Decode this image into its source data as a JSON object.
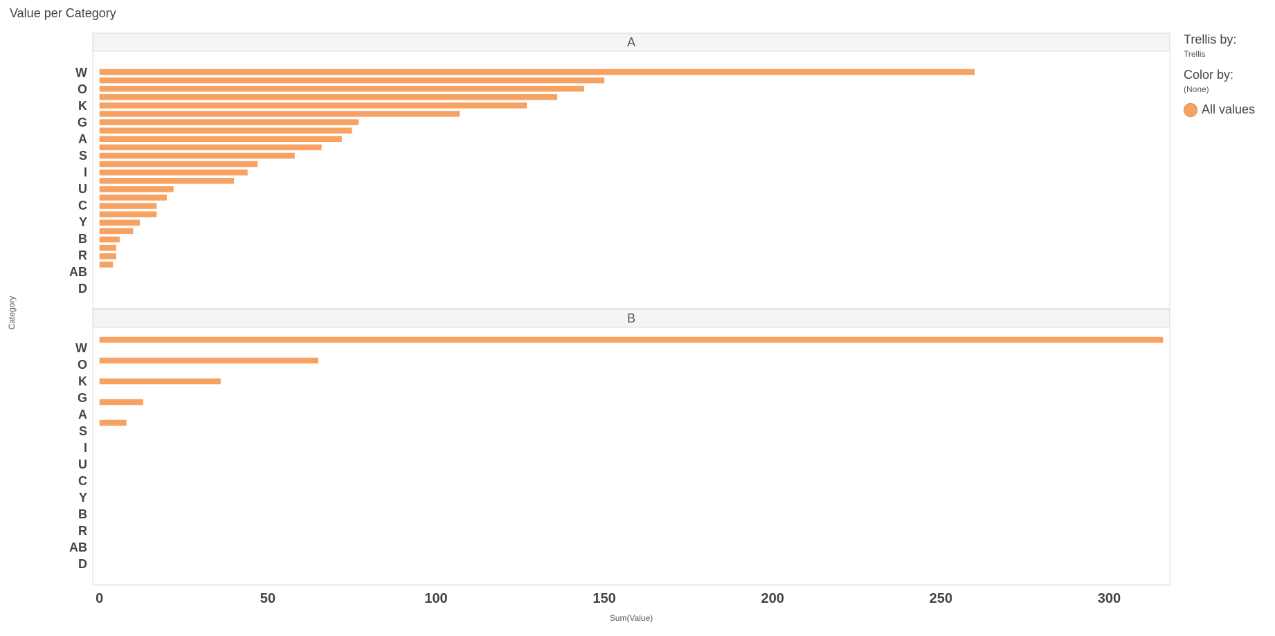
{
  "title": "Value per Category",
  "legend": {
    "trellis_heading": "Trellis by:",
    "trellis_value": "Trellis",
    "color_heading": "Color by:",
    "color_value": "(None)",
    "item_label": "All values",
    "item_color": "#f7a263"
  },
  "chart_data": {
    "type": "bar",
    "orientation": "horizontal",
    "trellis": true,
    "xlabel": "Sum(Value)",
    "ylabel": "Category",
    "xlim": [
      -2,
      318
    ],
    "xticks": [
      0,
      50,
      100,
      150,
      200,
      250,
      300
    ],
    "bar_color": "#f7a263",
    "grid": false,
    "legend_position": "right",
    "category_labels": [
      "W",
      "O",
      "K",
      "G",
      "A",
      "S",
      "I",
      "U",
      "C",
      "Y",
      "B",
      "R",
      "AB",
      "D"
    ],
    "panels": [
      {
        "name": "A",
        "values": [
          260,
          150,
          144,
          136,
          127,
          107,
          77,
          75,
          72,
          66,
          58,
          47,
          44,
          40,
          22,
          20,
          17,
          17,
          12,
          10,
          6,
          5,
          5,
          4
        ]
      },
      {
        "name": "B",
        "values": [
          316,
          65,
          36,
          13,
          8
        ]
      }
    ]
  }
}
